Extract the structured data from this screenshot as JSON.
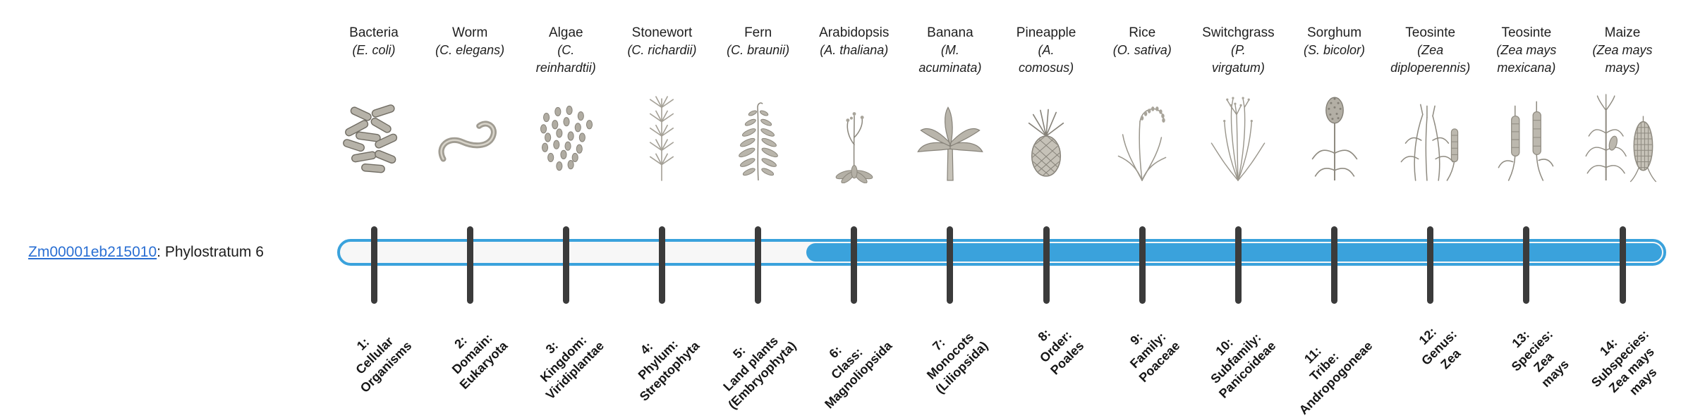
{
  "gene": {
    "id": "Zm00001eb215010",
    "suffix": ": Phylostratum 6"
  },
  "timeline": {
    "total_strata": 14,
    "highlight_start_stratum": 6,
    "colors": {
      "bar": "#3aa2dc",
      "track": "#f7f7f7",
      "tick": "#3b3b3b",
      "link": "#2a6fd3"
    }
  },
  "strata": [
    {
      "number": 1,
      "organism": "Bacteria",
      "species": "(E. coli)",
      "icon": "bacteria-icon",
      "label": "1:\nCellular\nOrganisms"
    },
    {
      "number": 2,
      "organism": "Worm",
      "species": "(C. elegans)",
      "icon": "worm-icon",
      "label": "2:\nDomain:\nEukaryota"
    },
    {
      "number": 3,
      "organism": "Algae",
      "species": "(C.\nreinhardtii)",
      "icon": "algae-icon",
      "label": "3:\nKingdom:\nViridiplantae"
    },
    {
      "number": 4,
      "organism": "Stonewort",
      "species": "(C. richardii)",
      "icon": "stonewort-icon",
      "label": "4:\nPhylum:\nStreptophyta"
    },
    {
      "number": 5,
      "organism": "Fern",
      "species": "(C. braunii)",
      "icon": "fern-icon",
      "label": "5:\nLand plants\n(Embryophyta)"
    },
    {
      "number": 6,
      "organism": "Arabidopsis",
      "species": "(A. thaliana)",
      "icon": "arabidopsis-icon",
      "label": "6:\nClass:\nMagnoliopsida"
    },
    {
      "number": 7,
      "organism": "Banana",
      "species": "(M.\nacuminata)",
      "icon": "banana-icon",
      "label": "7:\nMonocots\n(Liliopsida)"
    },
    {
      "number": 8,
      "organism": "Pineapple",
      "species": "(A.\ncomosus)",
      "icon": "pineapple-icon",
      "label": "8:\nOrder:\nPoales"
    },
    {
      "number": 9,
      "organism": "Rice",
      "species": "(O. sativa)",
      "icon": "rice-icon",
      "label": "9:\nFamily:\nPoaceae"
    },
    {
      "number": 10,
      "organism": "Switchgrass",
      "species": "(P.\nvirgatum)",
      "icon": "switchgrass-icon",
      "label": "10:\nSubfamily:\nPanicoideae"
    },
    {
      "number": 11,
      "organism": "Sorghum",
      "species": "(S. bicolor)",
      "icon": "sorghum-icon",
      "label": "11:\nTribe:\nAndropogoneae"
    },
    {
      "number": 12,
      "organism": "Teosinte",
      "species": "(Zea\ndiploperennis)",
      "icon": "teosinte-diploperennis-icon",
      "label": "12:\nGenus:\nZea"
    },
    {
      "number": 13,
      "organism": "Teosinte",
      "species": "(Zea mays\nmexicana)",
      "icon": "teosinte-mexicana-icon",
      "label": "13:\nSpecies:\nZea\nmays"
    },
    {
      "number": 14,
      "organism": "Maize",
      "species": "(Zea mays\nmays)",
      "icon": "maize-icon",
      "label": "14:\nSubspecies:\nZea mays\nmays"
    }
  ]
}
